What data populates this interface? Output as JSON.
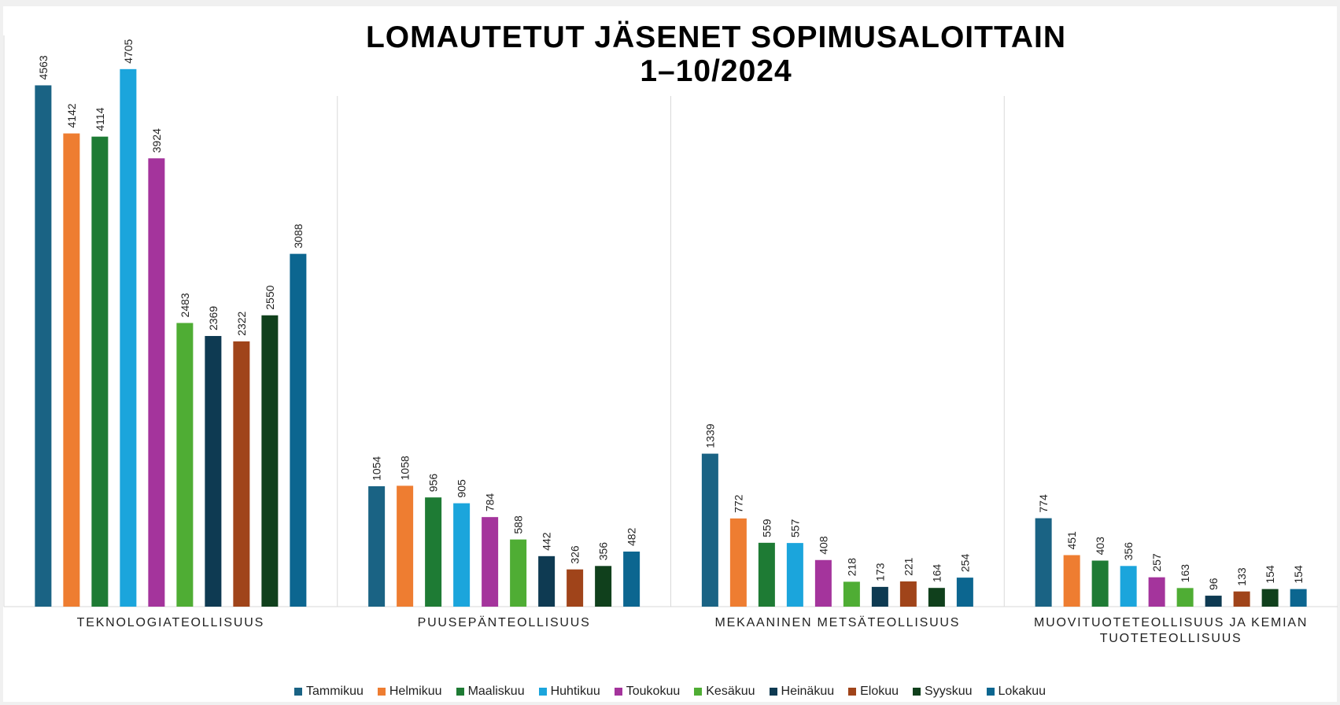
{
  "chart_data": {
    "type": "bar",
    "title": "LOMAUTETUT JÄSENET SOPIMUSALOITTAIN\n1–10/2024",
    "categories": [
      "TEKNOLOGIATEOLLISUUS",
      "PUUSEPÄNTEOLLISUUS",
      "MEKAANINEN METSÄTEOLLISUUS",
      "MUOVITUOTETEOLLISUUS JA KEMIAN TUOTETEOLLISUUS"
    ],
    "ylim": [
      0,
      5000
    ],
    "series": [
      {
        "name": "Tammikuu",
        "color": "#1a6384",
        "values": [
          4563,
          1054,
          1339,
          774
        ]
      },
      {
        "name": "Helmikuu",
        "color": "#ee7d31",
        "values": [
          4142,
          1058,
          772,
          451
        ]
      },
      {
        "name": "Maaliskuu",
        "color": "#1e7b34",
        "values": [
          4114,
          956,
          559,
          403
        ]
      },
      {
        "name": "Huhtikuu",
        "color": "#1ba5dc",
        "values": [
          4705,
          905,
          557,
          356
        ]
      },
      {
        "name": "Toukokuu",
        "color": "#a4349c",
        "values": [
          3924,
          784,
          408,
          257
        ]
      },
      {
        "name": "Kesäkuu",
        "color": "#4fad34",
        "values": [
          2483,
          588,
          218,
          163
        ]
      },
      {
        "name": "Heinäkuu",
        "color": "#0e3a52",
        "values": [
          2369,
          442,
          173,
          96
        ]
      },
      {
        "name": "Elokuu",
        "color": "#a0441a",
        "values": [
          2322,
          326,
          221,
          133
        ]
      },
      {
        "name": "Syyskuu",
        "color": "#10401c",
        "values": [
          2550,
          356,
          164,
          154
        ]
      },
      {
        "name": "Lokakuu",
        "color": "#0c6690",
        "values": [
          3088,
          482,
          254,
          154
        ]
      }
    ]
  }
}
